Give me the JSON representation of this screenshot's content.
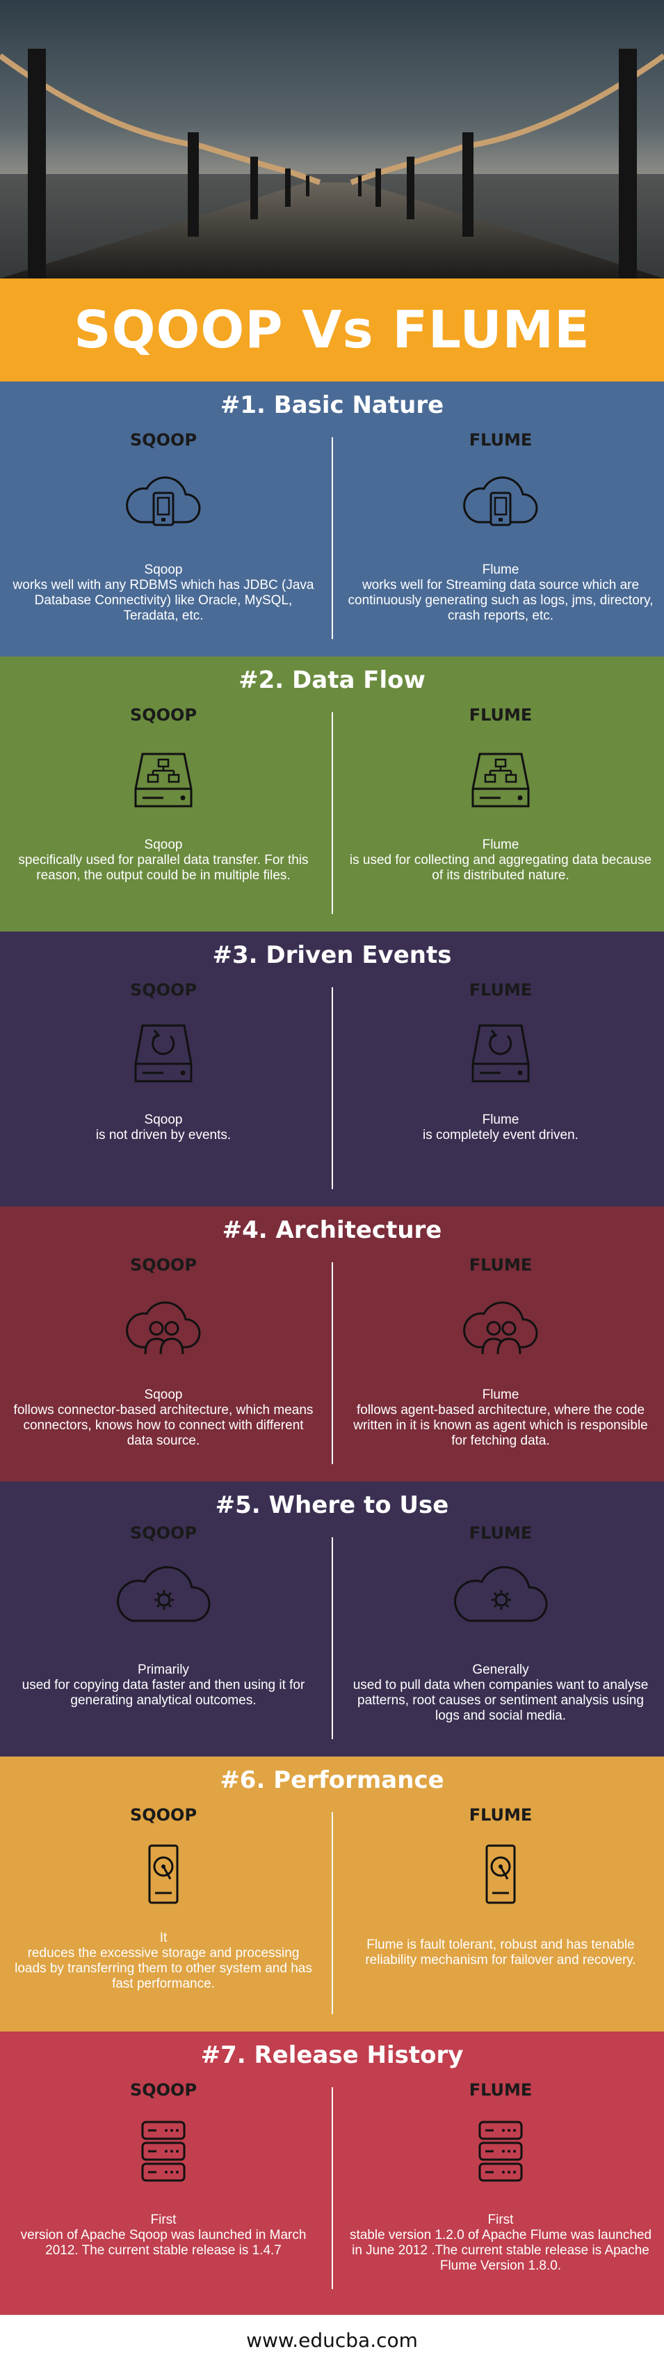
{
  "page_title": "SQOOP Vs FLUME",
  "footer_url": "www.educba.com",
  "colors": {
    "banner": "#f5a623",
    "basic_nature": "#4a6b96",
    "data_flow": "#6b8b3f",
    "driven_events": "#3b3052",
    "architecture": "#7b2d3a",
    "where_to_use": "#3b3052",
    "performance": "#e0a444",
    "release_history": "#c13f4e"
  },
  "sections": [
    {
      "title": "#1. Basic Nature",
      "icon": "cloud-device-icon",
      "left": {
        "name": "SQOOP",
        "lead": "Sqoop",
        "text": "works well with any RDBMS which has JDBC (Java Database Connectivity) like Oracle, MySQL, Teradata, etc."
      },
      "right": {
        "name": "FLUME",
        "lead": "Flume",
        "text": "works well for Streaming data source which are continuously generating such as logs, jms, directory, crash reports, etc."
      }
    },
    {
      "title": "#2. Data Flow",
      "icon": "drive-network-icon",
      "left": {
        "name": "SQOOP",
        "lead": "Sqoop",
        "text": "specifically used for parallel data transfer. For this reason, the output could  be in multiple files."
      },
      "right": {
        "name": "FLUME",
        "lead": "Flume",
        "text": "is used for collecting and aggregating data because of its distributed nature."
      }
    },
    {
      "title": "#3. Driven Events",
      "icon": "drive-refresh-icon",
      "left": {
        "name": "SQOOP",
        "lead": "Sqoop",
        "text": "is not driven by events."
      },
      "right": {
        "name": "FLUME",
        "lead": "Flume",
        "text": "is completely event driven."
      }
    },
    {
      "title": "#4. Architecture",
      "icon": "cloud-users-icon",
      "left": {
        "name": "SQOOP",
        "lead": "Sqoop",
        "text": "follows connector-based architecture, which means connectors, knows how to connect with different data source."
      },
      "right": {
        "name": "FLUME",
        "lead": "Flume",
        "text": "follows agent-based architecture, where the code written in it is known as agent which is responsible for fetching data."
      }
    },
    {
      "title": "#5. Where to Use",
      "icon": "cloud-gear-icon",
      "left": {
        "name": "SQOOP",
        "lead": "Primarily",
        "text": "used for copying data faster and then using it for generating analytical outcomes."
      },
      "right": {
        "name": "FLUME",
        "lead": "Generally",
        "text": "used to pull data when companies want to analyse patterns, root causes or sentiment analysis using logs and social media."
      }
    },
    {
      "title": "#6. Performance",
      "icon": "hard-disk-icon",
      "left": {
        "name": "SQOOP",
        "lead": "It",
        "text": "reduces the excessive storage and processing loads by transferring them to other system and has fast performance."
      },
      "right": {
        "name": "FLUME",
        "lead": "",
        "text": "Flume is fault tolerant, robust and has tenable reliability mechanism for failover and recovery."
      }
    },
    {
      "title": "#7. Release History",
      "icon": "server-rack-icon",
      "left": {
        "name": "SQOOP",
        "lead": "First",
        "text": "version of Apache Sqoop was launched in March 2012. The current stable release is 1.4.7"
      },
      "right": {
        "name": "FLUME",
        "lead": "First",
        "text": "stable version 1.2.0 of Apache Flume was launched in June 2012 .The current stable release is Apache Flume Version 1.8.0."
      }
    }
  ]
}
